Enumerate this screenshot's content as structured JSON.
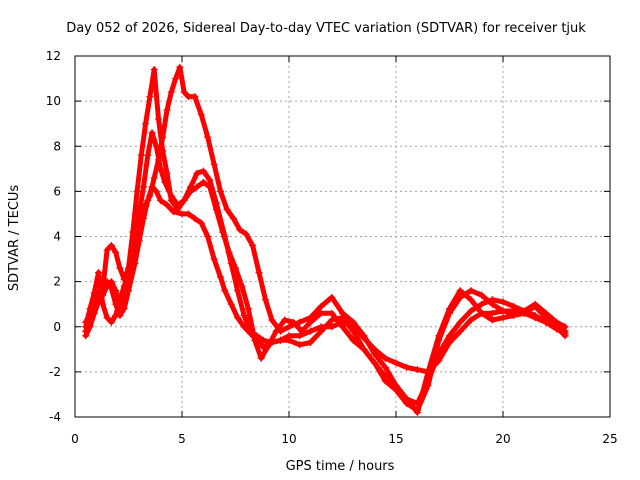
{
  "chart_data": {
    "type": "scatter",
    "title": "Day 052 of 2026, Sidereal Day-to-day VTEC variation (SDTVAR) for receiver tjuk",
    "xlabel": "GPS time / hours",
    "ylabel": "SDTVAR / TECUs",
    "xlim": [
      0,
      25
    ],
    "ylim": [
      -4,
      12
    ],
    "xticks": [
      0,
      5,
      10,
      15,
      20,
      25
    ],
    "yticks": [
      -4,
      -2,
      0,
      2,
      4,
      6,
      8,
      10,
      12
    ],
    "grid": true,
    "marker": "plus",
    "color": "#ff0000",
    "series": [
      {
        "x": [
          0.5,
          0.7,
          0.9,
          1.1,
          1.3,
          1.5,
          1.7,
          1.9,
          2.1,
          2.3,
          2.5,
          2.8,
          3.0,
          3.2,
          3.4,
          3.6,
          3.8,
          4.0,
          4.3,
          4.6,
          5.0,
          5.3,
          5.6,
          5.9,
          6.2,
          6.5,
          6.8,
          7.0,
          7.3,
          7.6,
          7.9,
          8.2,
          8.5,
          8.8,
          9.2,
          9.6,
          10.0,
          10.5,
          11.0,
          11.5,
          12.0,
          12.5,
          13.0,
          13.5,
          14.0,
          14.5,
          15.0,
          15.5,
          16.0,
          16.5,
          17.0,
          17.5,
          18.0,
          18.5,
          19.0,
          19.5,
          20.0,
          20.5,
          21.0,
          21.5,
          22.0,
          22.5,
          22.9
        ],
        "y": [
          0.2,
          0.6,
          1.2,
          1.5,
          1.8,
          2.0,
          1.7,
          1.0,
          0.5,
          0.8,
          1.6,
          2.8,
          3.8,
          4.8,
          5.6,
          6.2,
          6.0,
          5.6,
          5.4,
          5.1,
          5.0,
          5.0,
          4.8,
          4.6,
          4.0,
          3.0,
          2.2,
          1.6,
          1.0,
          0.4,
          0.0,
          -0.3,
          -0.6,
          -0.9,
          -0.7,
          -0.6,
          -0.4,
          -0.4,
          -0.2,
          0.0,
          0.0,
          0.2,
          0.0,
          -0.5,
          -1.0,
          -1.4,
          -1.6,
          -1.8,
          -1.9,
          -2.0,
          -1.5,
          -0.7,
          -0.2,
          0.3,
          0.6,
          0.6,
          0.7,
          0.7,
          0.6,
          0.4,
          0.2,
          0.0,
          -0.2
        ]
      },
      {
        "x": [
          0.5,
          0.7,
          0.9,
          1.1,
          1.3,
          1.5,
          1.7,
          1.9,
          2.1,
          2.3,
          2.5,
          2.8,
          3.0,
          3.2,
          3.4,
          3.6,
          3.8,
          4.0,
          4.2,
          4.5,
          4.8,
          5.1,
          5.4,
          5.7,
          6.0,
          6.3,
          6.6,
          7.0,
          7.3,
          7.6,
          7.9,
          8.2,
          8.5,
          8.8,
          9.2,
          9.6,
          10.0,
          10.5,
          11.0,
          11.5,
          12.0,
          12.5,
          13.0,
          13.5,
          14.0,
          14.5,
          15.0,
          15.5,
          16.0,
          16.5,
          17.0,
          17.5,
          18.0,
          18.5,
          19.0,
          19.5,
          20.0,
          20.5,
          21.0,
          21.5,
          22.0,
          22.5,
          22.9
        ],
        "y": [
          -0.4,
          0.0,
          0.6,
          1.1,
          1.4,
          1.8,
          2.0,
          1.6,
          0.9,
          1.1,
          2.2,
          3.8,
          5.0,
          6.2,
          7.6,
          8.6,
          8.0,
          7.0,
          6.4,
          5.8,
          5.4,
          5.6,
          6.2,
          6.8,
          6.9,
          6.5,
          5.5,
          4.0,
          2.8,
          1.6,
          0.5,
          -0.2,
          -0.4,
          -0.6,
          -0.7,
          -0.6,
          -0.6,
          -0.8,
          -0.7,
          -0.2,
          0.3,
          0.4,
          -0.2,
          -1.0,
          -1.6,
          -2.2,
          -2.8,
          -3.2,
          -3.4,
          -2.4,
          -1.2,
          -0.4,
          0.2,
          0.7,
          1.0,
          1.2,
          1.1,
          0.9,
          0.7,
          0.5,
          0.2,
          -0.1,
          -0.3
        ]
      },
      {
        "x": [
          0.5,
          0.7,
          0.9,
          1.1,
          1.3,
          1.5,
          1.7,
          1.9,
          2.1,
          2.3,
          2.5,
          2.7,
          2.9,
          3.1,
          3.3,
          3.5,
          3.7,
          3.9,
          4.1,
          4.3,
          4.5,
          4.8,
          5.1,
          5.4,
          5.7,
          6.0,
          6.3,
          6.6,
          6.9,
          7.2,
          7.5,
          7.8,
          8.1,
          8.4,
          8.7,
          9.0,
          9.4,
          9.8,
          10.2,
          10.6,
          11.0,
          11.5,
          12.0,
          12.5,
          13.0,
          13.5,
          14.0,
          14.5,
          15.0,
          15.5,
          16.0,
          16.5,
          17.0,
          17.5,
          18.0,
          18.5,
          19.0,
          19.5,
          20.0,
          20.5,
          21.0,
          21.5,
          22.0,
          22.5,
          22.9
        ],
        "y": [
          -0.2,
          0.3,
          0.8,
          1.3,
          1.7,
          3.4,
          3.6,
          3.3,
          2.6,
          2.1,
          2.6,
          4.2,
          6.0,
          7.6,
          9.0,
          10.2,
          11.4,
          9.2,
          7.8,
          6.8,
          5.6,
          5.2,
          5.6,
          6.0,
          6.2,
          6.4,
          6.2,
          5.2,
          4.2,
          3.3,
          2.6,
          1.8,
          0.8,
          -0.6,
          -1.4,
          -0.9,
          -0.2,
          0.3,
          0.2,
          -0.2,
          0.2,
          0.6,
          0.6,
          0.0,
          -0.6,
          -1.0,
          -1.6,
          -2.4,
          -2.8,
          -3.4,
          -3.7,
          -2.6,
          -0.6,
          0.6,
          1.3,
          1.6,
          1.4,
          1.0,
          0.7,
          0.6,
          0.7,
          1.0,
          0.6,
          0.2,
          0.0
        ]
      },
      {
        "x": [
          0.5,
          0.7,
          0.9,
          1.1,
          1.3,
          1.5,
          1.7,
          1.9,
          2.1,
          2.3,
          2.5,
          2.7,
          2.9,
          3.1,
          3.3,
          3.5,
          3.7,
          3.9,
          4.1,
          4.3,
          4.5,
          4.7,
          4.9,
          5.1,
          5.3,
          5.6,
          5.9,
          6.2,
          6.5,
          6.8,
          7.1,
          7.4,
          7.7,
          8.0,
          8.3,
          8.6,
          8.9,
          9.2,
          9.6,
          10.0,
          10.5,
          11.0,
          11.5,
          12.0,
          12.5,
          13.0,
          13.5,
          14.0,
          14.5,
          15.0,
          15.5,
          16.0,
          16.5,
          17.0,
          17.5,
          18.0,
          18.5,
          19.0,
          19.5,
          20.0,
          20.5,
          21.0,
          21.5,
          22.0,
          22.5,
          22.9
        ],
        "y": [
          0.0,
          0.8,
          1.5,
          2.4,
          1.0,
          0.4,
          0.2,
          0.5,
          1.2,
          1.8,
          2.4,
          3.4,
          4.2,
          4.8,
          5.4,
          5.8,
          6.6,
          7.4,
          8.4,
          9.6,
          10.4,
          11.0,
          11.5,
          10.4,
          10.2,
          10.2,
          9.4,
          8.4,
          7.2,
          6.0,
          5.2,
          4.8,
          4.3,
          4.1,
          3.6,
          2.4,
          1.2,
          0.3,
          -0.2,
          0.0,
          0.2,
          0.4,
          0.9,
          1.3,
          0.6,
          0.2,
          -0.4,
          -1.2,
          -1.8,
          -2.6,
          -3.2,
          -3.8,
          -2.0,
          -0.4,
          0.8,
          1.6,
          1.2,
          0.6,
          0.3,
          0.4,
          0.5,
          0.6,
          0.9,
          0.4,
          0.0,
          -0.4
        ]
      }
    ]
  }
}
